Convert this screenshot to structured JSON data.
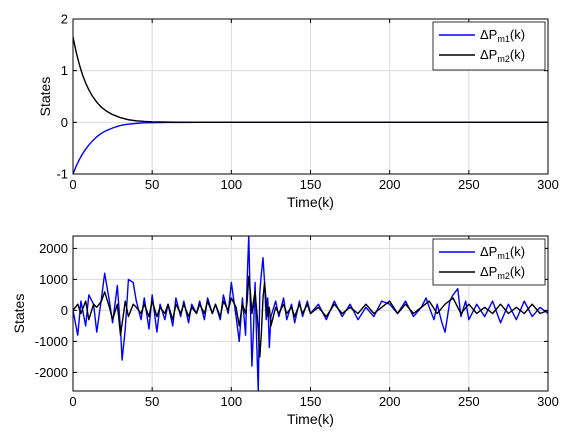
{
  "chart_data": [
    {
      "type": "line",
      "xlabel": "Time(k)",
      "ylabel": "States",
      "xlim": [
        0,
        300
      ],
      "ylim": [
        -1,
        2
      ],
      "xticks": [
        0,
        50,
        100,
        150,
        200,
        250,
        300
      ],
      "yticks": [
        -1,
        0,
        1,
        2
      ],
      "xtick_labels": [
        "0",
        "50",
        "100",
        "150",
        "200",
        "250",
        "300"
      ],
      "ytick_labels": [
        "-1",
        "0",
        "1",
        "2"
      ],
      "grid": true,
      "legend_position": "top-right",
      "series": [
        {
          "name": "ΔP",
          "sub": "m1",
          "suffix": "(k)",
          "color": "#0000ff",
          "x": [
            0,
            2,
            4,
            6,
            8,
            10,
            12,
            15,
            18,
            21,
            25,
            30,
            35,
            40,
            45,
            50,
            60,
            70,
            80,
            100,
            150,
            200,
            250,
            300
          ],
          "y": [
            -1.0,
            -0.85,
            -0.72,
            -0.61,
            -0.52,
            -0.44,
            -0.37,
            -0.28,
            -0.21,
            -0.16,
            -0.11,
            -0.06,
            -0.035,
            -0.02,
            -0.01,
            -0.006,
            -0.002,
            -0.001,
            0,
            0,
            0,
            0,
            0,
            0
          ]
        },
        {
          "name": "ΔP",
          "sub": "m2",
          "suffix": "(k)",
          "color": "#000000",
          "x": [
            0,
            2,
            4,
            6,
            8,
            10,
            12,
            15,
            18,
            21,
            25,
            30,
            35,
            40,
            45,
            50,
            60,
            70,
            80,
            100,
            150,
            200,
            250,
            300
          ],
          "y": [
            1.65,
            1.36,
            1.12,
            0.92,
            0.76,
            0.63,
            0.52,
            0.39,
            0.29,
            0.22,
            0.15,
            0.09,
            0.05,
            0.03,
            0.018,
            0.01,
            0.004,
            0.001,
            0,
            0,
            0,
            0,
            0,
            0
          ]
        }
      ]
    },
    {
      "type": "line",
      "xlabel": "Time(k)",
      "ylabel": "States",
      "xlim": [
        0,
        300
      ],
      "ylim": [
        -2600,
        2400
      ],
      "xticks": [
        0,
        50,
        100,
        150,
        200,
        250,
        300
      ],
      "yticks": [
        -2000,
        -1000,
        0,
        1000,
        2000
      ],
      "xtick_labels": [
        "0",
        "50",
        "100",
        "150",
        "200",
        "250",
        "300"
      ],
      "ytick_labels": [
        "-2000",
        "-1000",
        "0",
        "1000",
        "2000"
      ],
      "grid": true,
      "legend_position": "top-right",
      "series": [
        {
          "name": "ΔP",
          "sub": "m1",
          "suffix": "(k)",
          "color": "#0000ff",
          "x": [
            0,
            3,
            5,
            8,
            10,
            13,
            15,
            18,
            20,
            23,
            25,
            28,
            30,
            31,
            33,
            35,
            38,
            40,
            43,
            45,
            48,
            50,
            53,
            55,
            58,
            60,
            63,
            65,
            68,
            70,
            73,
            75,
            78,
            80,
            83,
            85,
            88,
            90,
            93,
            95,
            98,
            100,
            103,
            105,
            107,
            109,
            110,
            111,
            112,
            113,
            114,
            115,
            116,
            117,
            118,
            119,
            120,
            121,
            122,
            123,
            124,
            125,
            128,
            130,
            133,
            135,
            138,
            140,
            143,
            145,
            148,
            150,
            155,
            160,
            165,
            170,
            175,
            180,
            185,
            190,
            195,
            200,
            205,
            210,
            215,
            220,
            223,
            225,
            228,
            230,
            233,
            235,
            238,
            240,
            243,
            245,
            248,
            250,
            255,
            260,
            265,
            270,
            275,
            280,
            285,
            290,
            295,
            300
          ],
          "y": [
            0,
            -800,
            300,
            -500,
            500,
            200,
            -700,
            400,
            1200,
            300,
            -400,
            800,
            -600,
            -1600,
            -600,
            1000,
            900,
            300,
            -300,
            400,
            -600,
            500,
            -700,
            200,
            -300,
            200,
            -500,
            400,
            -200,
            300,
            -400,
            200,
            -100,
            300,
            -300,
            400,
            -100,
            200,
            -300,
            500,
            -100,
            900,
            -200,
            -1000,
            400,
            -800,
            1000,
            2400,
            200,
            -1800,
            -600,
            900,
            -1000,
            -2600,
            600,
            1200,
            1700,
            900,
            -300,
            400,
            -1200,
            -200,
            300,
            -200,
            400,
            -300,
            200,
            -400,
            300,
            -200,
            300,
            -100,
            200,
            -300,
            300,
            -200,
            200,
            -300,
            100,
            -200,
            300,
            200,
            -100,
            300,
            -200,
            100,
            400,
            100,
            -300,
            200,
            -400,
            -700,
            300,
            500,
            700,
            -200,
            300,
            -300,
            200,
            -200,
            300,
            -400,
            200,
            -300,
            300,
            -200,
            100,
            -100
          ]
        },
        {
          "name": "ΔP",
          "sub": "m2",
          "suffix": "(k)",
          "color": "#000000",
          "x": [
            0,
            3,
            5,
            8,
            10,
            13,
            15,
            18,
            20,
            23,
            25,
            28,
            30,
            33,
            35,
            38,
            40,
            43,
            45,
            48,
            50,
            53,
            55,
            58,
            60,
            63,
            65,
            68,
            70,
            73,
            75,
            78,
            80,
            83,
            85,
            88,
            90,
            93,
            95,
            98,
            100,
            103,
            105,
            107,
            109,
            110,
            111,
            112,
            113,
            114,
            115,
            116,
            117,
            118,
            119,
            120,
            121,
            122,
            123,
            124,
            125,
            128,
            130,
            133,
            135,
            138,
            140,
            143,
            145,
            148,
            150,
            155,
            160,
            165,
            170,
            175,
            180,
            185,
            190,
            195,
            200,
            205,
            210,
            215,
            220,
            225,
            230,
            235,
            240,
            245,
            250,
            255,
            260,
            265,
            270,
            275,
            280,
            285,
            290,
            295,
            300
          ],
          "y": [
            0,
            200,
            -100,
            300,
            -300,
            200,
            100,
            300,
            600,
            100,
            -300,
            200,
            -800,
            300,
            -200,
            200,
            100,
            -100,
            200,
            -200,
            300,
            -200,
            100,
            -100,
            200,
            -300,
            200,
            -100,
            200,
            -200,
            100,
            -100,
            200,
            -100,
            300,
            -100,
            200,
            -200,
            300,
            0,
            400,
            100,
            -500,
            200,
            -100,
            300,
            1100,
            600,
            -100,
            300,
            600,
            0,
            -600,
            -1500,
            -700,
            400,
            900,
            300,
            -200,
            100,
            -500,
            100,
            -100,
            200,
            -100,
            100,
            -200,
            200,
            -100,
            200,
            -100,
            100,
            -200,
            200,
            -100,
            100,
            -100,
            200,
            -100,
            100,
            300,
            -100,
            200,
            -100,
            100,
            300,
            -100,
            200,
            400,
            -100,
            200,
            -100,
            100,
            -100,
            200,
            -100,
            100,
            -100,
            200,
            -100,
            0
          ]
        }
      ]
    }
  ]
}
